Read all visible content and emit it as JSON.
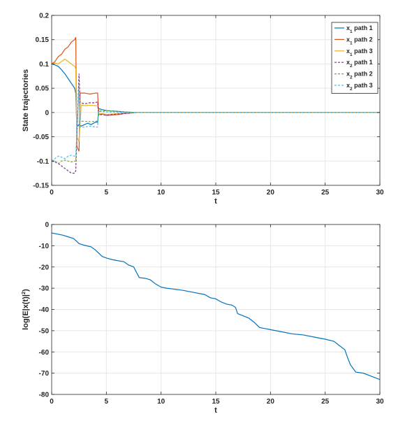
{
  "chart_data": [
    {
      "type": "line",
      "xlabel": "t",
      "ylabel": "State trajectories",
      "xlim": [
        0,
        30
      ],
      "ylim": [
        -0.15,
        0.2
      ],
      "xticks": [
        0,
        5,
        10,
        15,
        20,
        25,
        30
      ],
      "yticks": [
        -0.15,
        -0.1,
        -0.05,
        0,
        0.05,
        0.1,
        0.15,
        0.2
      ],
      "grid": true,
      "legend": "top-right",
      "series": [
        {
          "name": "x_1 path 1",
          "name_main": "x",
          "name_sub": "1",
          "name_rest": " path 1",
          "color": "#0072BD",
          "dash": "solid",
          "x": [
            0,
            0.3,
            0.6,
            0.9,
            1.2,
            1.5,
            1.8,
            2.1,
            2.2,
            2.3,
            2.5,
            2.7,
            3.0,
            3.3,
            3.6,
            4.0,
            4.2,
            4.3,
            4.6,
            5.0,
            5.6,
            6.2,
            6.7,
            7.3,
            7.7,
            30
          ],
          "y": [
            0.1,
            0.098,
            0.095,
            0.088,
            0.08,
            0.07,
            0.06,
            0.05,
            0.04,
            -0.03,
            -0.025,
            -0.028,
            -0.025,
            -0.022,
            -0.025,
            -0.02,
            -0.02,
            0.008,
            0.006,
            0.004,
            0.003,
            0.002,
            0.001,
            0.0005,
            0,
            0
          ]
        },
        {
          "name": "x_1 path 2",
          "name_main": "x",
          "name_sub": "1",
          "name_rest": " path 2",
          "color": "#D95319",
          "dash": "solid",
          "x": [
            0,
            0.3,
            0.6,
            0.9,
            1.2,
            1.5,
            1.8,
            2.1,
            2.2,
            2.3,
            2.5,
            2.6,
            3.0,
            3.5,
            4.0,
            4.2,
            4.3,
            4.6,
            5.0,
            5.6,
            6.2,
            6.7,
            7.3,
            7.7,
            30
          ],
          "y": [
            0.1,
            0.105,
            0.115,
            0.12,
            0.13,
            0.135,
            0.145,
            0.15,
            0.155,
            -0.07,
            -0.08,
            0.04,
            0.04,
            0.038,
            0.04,
            0.04,
            -0.004,
            -0.003,
            -0.006,
            -0.005,
            -0.004,
            -0.002,
            -0.001,
            0,
            0
          ]
        },
        {
          "name": "x_1 path 3",
          "name_main": "x",
          "name_sub": "1",
          "name_rest": " path 3",
          "color": "#EDB120",
          "dash": "solid",
          "x": [
            0,
            0.3,
            0.6,
            0.9,
            1.2,
            1.5,
            1.8,
            2.1,
            2.2,
            2.3,
            2.5,
            2.7,
            3.0,
            3.5,
            4.0,
            4.2,
            4.3,
            4.6,
            5.0,
            5.6,
            6.2,
            6.7,
            7.3,
            7.7,
            30
          ],
          "y": [
            0.1,
            0.102,
            0.1,
            0.105,
            0.11,
            0.105,
            0.1,
            0.095,
            0.09,
            -0.05,
            -0.06,
            0.015,
            0.014,
            0.015,
            0.014,
            0.014,
            -0.003,
            -0.002,
            -0.004,
            -0.003,
            -0.002,
            -0.001,
            0,
            0,
            0
          ]
        },
        {
          "name": "x_2 path 1",
          "name_main": "x",
          "name_sub": "2",
          "name_rest": " path 1",
          "color": "#7E2F8E",
          "dash": "dashed",
          "x": [
            0,
            0.3,
            0.6,
            0.9,
            1.2,
            1.5,
            1.8,
            2.1,
            2.2,
            2.5,
            2.6,
            3.0,
            3.5,
            4.0,
            4.2,
            4.3,
            4.6,
            5.0,
            5.6,
            6.2,
            6.7,
            7.3,
            7.7,
            30
          ],
          "y": [
            -0.1,
            -0.102,
            -0.105,
            -0.11,
            -0.115,
            -0.12,
            -0.125,
            -0.125,
            -0.12,
            0.08,
            0.02,
            0.018,
            0.02,
            0.02,
            0.022,
            -0.006,
            -0.004,
            -0.006,
            -0.004,
            -0.003,
            -0.002,
            -0.001,
            0,
            0
          ]
        },
        {
          "name": "x_2 path 2",
          "name_main": "x",
          "name_sub": "2",
          "name_rest": " path 2",
          "color": "#77AC30",
          "dash": "dashed",
          "x": [
            0,
            0.3,
            0.6,
            0.9,
            1.2,
            1.5,
            1.8,
            2.1,
            2.2,
            2.5,
            2.6,
            3.0,
            3.5,
            4.0,
            4.2,
            4.3,
            4.6,
            5.0,
            5.6,
            6.2,
            6.7,
            7.3,
            7.7,
            30
          ],
          "y": [
            -0.1,
            -0.1,
            -0.105,
            -0.1,
            -0.098,
            -0.1,
            -0.102,
            -0.1,
            -0.1,
            0.06,
            -0.018,
            -0.018,
            -0.019,
            -0.018,
            -0.018,
            0.004,
            0.003,
            0.004,
            0.003,
            0.002,
            0.001,
            0,
            0,
            0
          ]
        },
        {
          "name": "x_2 path 3",
          "name_main": "x",
          "name_sub": "2",
          "name_rest": " path 3",
          "color": "#4DBEEE",
          "dash": "dashed",
          "x": [
            0,
            0.3,
            0.6,
            0.9,
            1.2,
            1.5,
            1.8,
            2.1,
            2.2,
            2.5,
            2.6,
            3.0,
            3.5,
            4.0,
            4.2,
            4.3,
            4.6,
            5.0,
            5.6,
            6.2,
            6.7,
            7.3,
            7.7,
            30
          ],
          "y": [
            -0.1,
            -0.095,
            -0.09,
            -0.092,
            -0.095,
            -0.09,
            -0.088,
            -0.09,
            -0.09,
            0.05,
            -0.03,
            -0.03,
            -0.028,
            -0.03,
            -0.03,
            0.002,
            0.002,
            0.001,
            0.001,
            0.0005,
            0,
            0,
            0,
            0
          ]
        }
      ]
    },
    {
      "type": "line",
      "xlabel": "t",
      "ylabel": "log(E|x(t)|^2)",
      "ylabel_main": "log(E|x(t)|",
      "ylabel_sup": "2",
      "ylabel_end": ")",
      "xlim": [
        0,
        30
      ],
      "ylim": [
        -80,
        0
      ],
      "xticks": [
        0,
        5,
        10,
        15,
        20,
        25,
        30
      ],
      "yticks": [
        -80,
        -70,
        -60,
        -50,
        -40,
        -30,
        -20,
        -10,
        0
      ],
      "grid": true,
      "series": [
        {
          "color": "#0072BD",
          "dash": "solid",
          "x": [
            0,
            0.5,
            1.0,
            1.5,
            2.0,
            2.3,
            2.5,
            3.0,
            3.6,
            4.0,
            4.6,
            5.0,
            5.5,
            6.0,
            6.6,
            7.0,
            7.5,
            7.7,
            8.0,
            8.5,
            9.0,
            9.5,
            10.0,
            10.5,
            11.0,
            12.0,
            13.0,
            14.0,
            14.5,
            15.0,
            15.5,
            16.0,
            16.5,
            16.8,
            17.0,
            17.5,
            18.0,
            18.5,
            19.0,
            20.0,
            21.0,
            22.0,
            23.0,
            24.0,
            25.0,
            25.8,
            26.3,
            26.8,
            27.0,
            27.3,
            27.8,
            28.5,
            29.0,
            29.5,
            30
          ],
          "y": [
            -4,
            -4.5,
            -5,
            -5.8,
            -6.6,
            -8,
            -9,
            -9.8,
            -10.5,
            -12,
            -15,
            -15.8,
            -16.5,
            -17,
            -17.5,
            -19,
            -20,
            -22,
            -25,
            -25.3,
            -26,
            -28,
            -29.5,
            -30,
            -30.3,
            -31,
            -32,
            -33,
            -34.5,
            -35,
            -36.5,
            -37.5,
            -38,
            -39,
            -42,
            -43,
            -44,
            -46,
            -48.5,
            -49.5,
            -50.5,
            -51.5,
            -52,
            -53,
            -54,
            -55,
            -57,
            -59,
            -62,
            -66,
            -69.5,
            -70,
            -71,
            -72,
            -73
          ]
        }
      ]
    }
  ]
}
